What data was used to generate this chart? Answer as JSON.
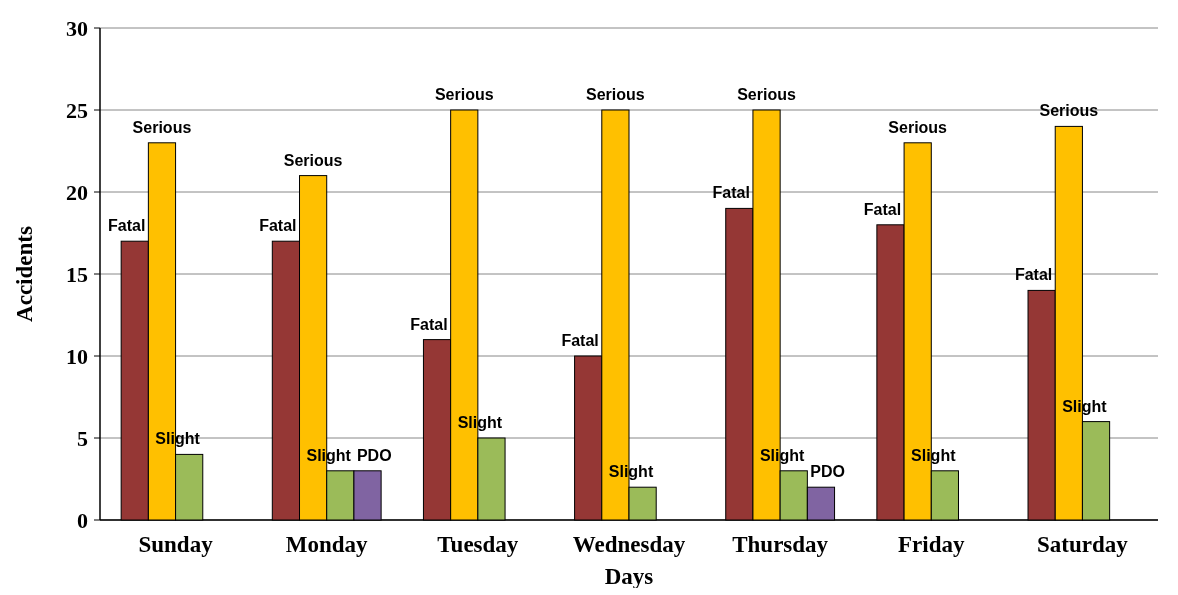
{
  "chart_data": {
    "type": "bar",
    "xlabel": "Days",
    "ylabel": "Accidents",
    "categories": [
      "Sunday",
      "Monday",
      "Tuesday",
      "Wednesday",
      "Thursday",
      "Friday",
      "Saturday"
    ],
    "series": [
      {
        "name": "Fatal",
        "color": "#953735",
        "values": [
          17,
          17,
          11,
          10,
          19,
          18,
          14
        ]
      },
      {
        "name": "Serious",
        "color": "#ffc000",
        "values": [
          23,
          21,
          25,
          25,
          25,
          23,
          24
        ]
      },
      {
        "name": "Slight",
        "color": "#9bbb59",
        "values": [
          4,
          3,
          5,
          2,
          3,
          3,
          6
        ]
      },
      {
        "name": "PDO",
        "color": "#8064a2",
        "values": [
          null,
          3,
          null,
          null,
          2,
          null,
          null
        ]
      }
    ],
    "ylim": [
      0,
      30
    ],
    "yticks": [
      0,
      5,
      10,
      15,
      20,
      25,
      30
    ],
    "grid": "y",
    "legend": false
  }
}
